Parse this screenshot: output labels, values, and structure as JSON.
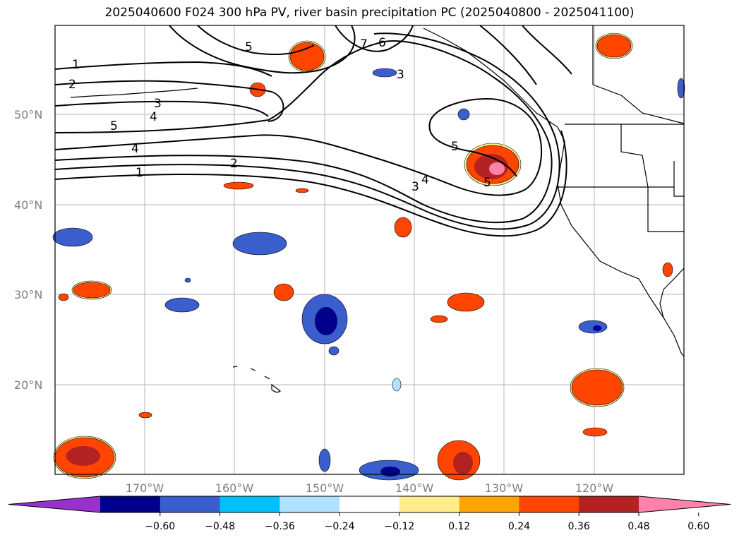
{
  "title": "2025040600 F024 300 hPa PV, river basin precipitation PC (2025040800 - 2025041100)",
  "map": {
    "lat_labels": [
      "50°N",
      "40°N",
      "30°N",
      "20°N"
    ],
    "lon_labels": [
      "170°W",
      "160°W",
      "150°W",
      "140°W",
      "130°W",
      "120°W"
    ],
    "contour_labels": [
      "1",
      "2",
      "3",
      "4",
      "5",
      "4",
      "1",
      "2",
      "3",
      "4",
      "5",
      "5",
      "5",
      "6",
      "7",
      "3"
    ]
  },
  "colorbar": {
    "ticks": [
      "−0.60",
      "−0.48",
      "−0.36",
      "−0.24",
      "−0.12",
      "0.12",
      "0.24",
      "0.36",
      "0.48",
      "0.60"
    ],
    "colors": [
      "#9932cc",
      "#00008b",
      "#3a5fcd",
      "#00bfff",
      "#b0e2ff",
      "#ffffff",
      "#ffec8b",
      "#ffa500",
      "#ff4500",
      "#b22222",
      "#ff82ab"
    ]
  }
}
